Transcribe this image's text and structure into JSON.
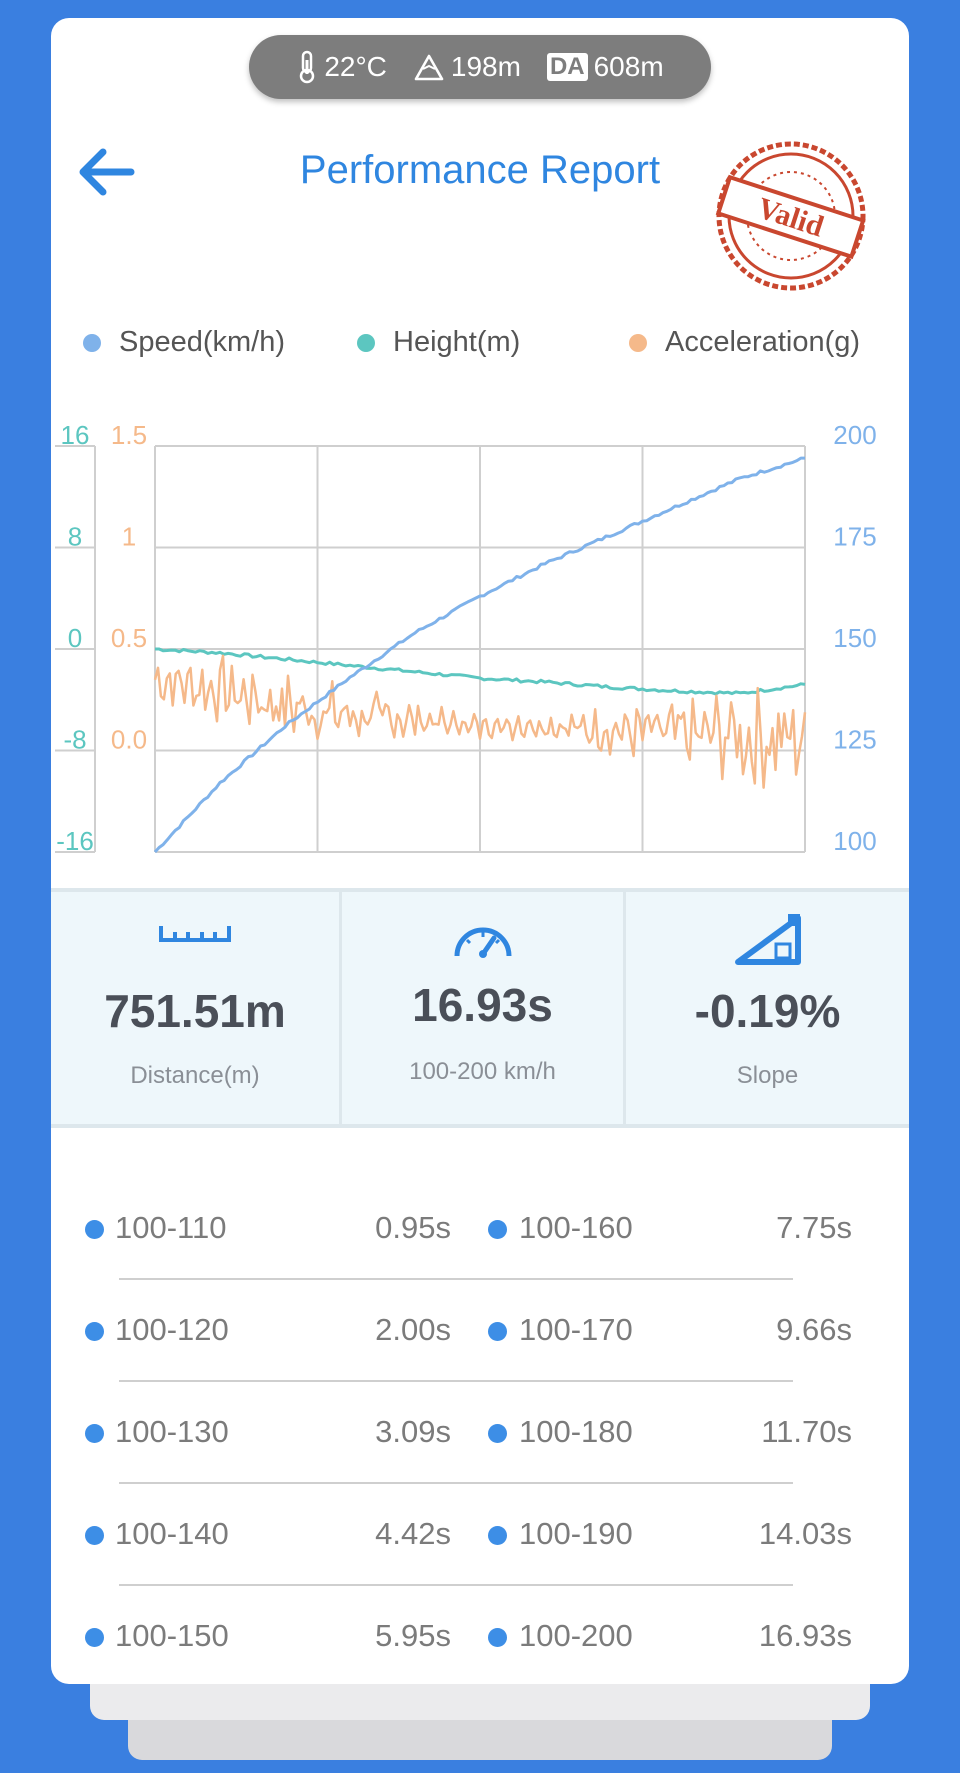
{
  "status_pill": {
    "temperature": "22°C",
    "elevation": "198m",
    "da_badge": "DA",
    "density_altitude": "608m"
  },
  "header": {
    "title": "Performance Report",
    "stamp_text": "Valid"
  },
  "colors": {
    "speed": "#7fb2ea",
    "height": "#5cc6c0",
    "acceleration": "#f5b98a",
    "accent": "#2f86e0",
    "stamp": "#c9472f"
  },
  "legend": {
    "speed": "Speed(km/h)",
    "height": "Height(m)",
    "acceleration": "Acceleration(g)"
  },
  "chart_data": {
    "type": "line",
    "grid": true,
    "axes": {
      "height_ticks": [
        "16",
        "8",
        "0",
        "-8",
        "-16"
      ],
      "height_range": [
        -16,
        16
      ],
      "accel_ticks": [
        "1.5",
        "1",
        "0.5",
        "0.0"
      ],
      "accel_range": [
        -0.5,
        1.5
      ],
      "speed_ticks": [
        "200",
        "175",
        "150",
        "125",
        "100"
      ],
      "speed_range": [
        100,
        200
      ]
    },
    "x": [
      0,
      0.1,
      0.2,
      0.3,
      0.4,
      0.5,
      0.6,
      0.7,
      0.8,
      0.9,
      1.0
    ],
    "series": [
      {
        "name": "Speed(km/h)",
        "axis": "speed",
        "values": [
          100,
          117,
          131,
          143,
          154,
          163,
          171,
          178,
          185,
          192,
          197
        ]
      },
      {
        "name": "Height(m)",
        "axis": "height",
        "values": [
          0,
          -0.3,
          -0.8,
          -1.3,
          -1.8,
          -2.3,
          -2.6,
          -3.0,
          -3.3,
          -3.5,
          -2.8
        ]
      },
      {
        "name": "Acceleration(g)",
        "axis": "accel",
        "values": [
          0.35,
          0.3,
          0.22,
          0.17,
          0.15,
          0.12,
          0.12,
          0.1,
          0.08,
          0.07,
          0.05
        ]
      }
    ]
  },
  "stats": [
    {
      "value": "751.51m",
      "label": "Distance(m)",
      "icon": "ruler-icon"
    },
    {
      "value": "16.93s",
      "label": "100-200 km/h",
      "icon": "speedometer-icon"
    },
    {
      "value": "-0.19%",
      "label": "Slope",
      "icon": "slope-icon"
    }
  ],
  "splits": [
    {
      "left_range": "100-110",
      "left_time": "0.95s",
      "right_range": "100-160",
      "right_time": "7.75s"
    },
    {
      "left_range": "100-120",
      "left_time": "2.00s",
      "right_range": "100-170",
      "right_time": "9.66s"
    },
    {
      "left_range": "100-130",
      "left_time": "3.09s",
      "right_range": "100-180",
      "right_time": "11.70s"
    },
    {
      "left_range": "100-140",
      "left_time": "4.42s",
      "right_range": "100-190",
      "right_time": "14.03s"
    },
    {
      "left_range": "100-150",
      "left_time": "5.95s",
      "right_range": "100-200",
      "right_time": "16.93s"
    }
  ]
}
